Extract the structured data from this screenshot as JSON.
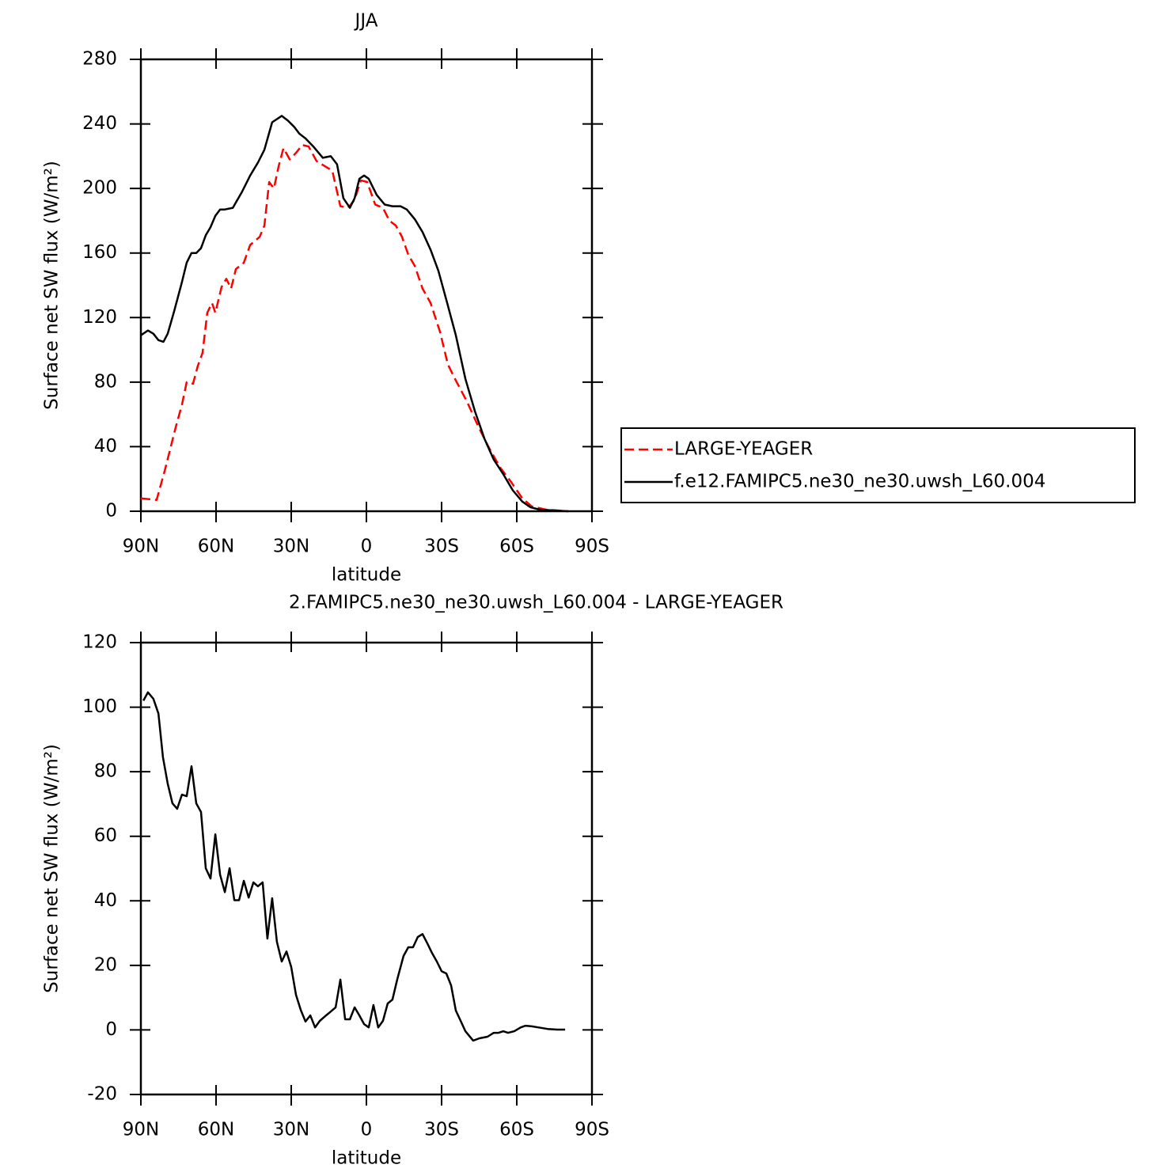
{
  "chart_data": [
    {
      "type": "line",
      "title": "JJA",
      "xlabel": "latitude",
      "ylabel": "Surface net SW flux (W/m²)",
      "xlim": [
        90,
        -90
      ],
      "xticks": [
        {
          "value": 90,
          "label": "90N"
        },
        {
          "value": 60,
          "label": "60N"
        },
        {
          "value": 30,
          "label": "30N"
        },
        0,
        {
          "value": -30,
          "label": "30S"
        },
        {
          "value": -60,
          "label": "60S"
        },
        {
          "value": -90,
          "label": "90S"
        }
      ],
      "ylim": [
        0,
        280
      ],
      "yticks": [
        0,
        40,
        80,
        120,
        160,
        200,
        240,
        280
      ],
      "legend": "outside-right",
      "series": [
        {
          "name": "LARGE-YEAGER",
          "color": "#ff0000",
          "linestyle": "dashed",
          "x": [
            90,
            83.7,
            80.5,
            76.1,
            73.6,
            71.7,
            69.2,
            67.3,
            65.4,
            63.5,
            61.6,
            60.3,
            57.8,
            55.9,
            54,
            52.1,
            48.9,
            46.4,
            42.6,
            40.7,
            38.8,
            36.9,
            35,
            33.1,
            30.6,
            28.1,
            25.6,
            23.1,
            19.9,
            16.8,
            13.6,
            10.4,
            7.3,
            4.7,
            2.2,
            -0.3,
            -3.5,
            -6.6,
            -9.2,
            -11.7,
            -14.2,
            -16.7,
            -19.3,
            -22.4,
            -25.6,
            -29.4,
            -32.5,
            -35.7,
            -40.1,
            -44.5,
            -49,
            -53.4,
            -57.8,
            -62.2,
            -66,
            -71.7,
            -80.5
          ],
          "values": [
            8,
            7,
            25,
            52,
            66,
            80,
            79,
            90,
            98,
            123,
            129,
            123,
            139,
            144,
            138,
            150,
            154,
            165,
            170,
            177,
            204,
            200,
            214,
            225,
            218,
            222,
            227,
            226,
            217,
            214,
            211,
            189,
            188,
            193,
            205,
            204,
            190,
            188,
            180,
            177,
            170,
            159,
            152,
            138,
            129,
            111,
            91,
            81,
            68,
            53,
            39,
            27,
            18,
            8,
            3,
            1,
            0
          ]
        },
        {
          "name": "f.e12.FAMIPC5.ne30_ne30.uwsh_L60.004",
          "color": "#000000",
          "linestyle": "solid",
          "x": [
            90,
            87.2,
            85,
            83,
            81,
            79.3,
            76.7,
            73.6,
            71.7,
            69.8,
            67.9,
            66,
            64.1,
            62.2,
            60.3,
            58.4,
            56.5,
            53.3,
            49.6,
            46.4,
            43.3,
            40.7,
            37.6,
            33.8,
            31.3,
            28.7,
            26.8,
            24.3,
            21.2,
            17.4,
            14.2,
            11.7,
            9.2,
            6.6,
            4.7,
            2.8,
            0.9,
            -0.9,
            -4.1,
            -7.3,
            -10.4,
            -13.6,
            -16.1,
            -19.3,
            -22.4,
            -25.6,
            -28.7,
            -31.9,
            -35.7,
            -39.5,
            -43.3,
            -47.1,
            -50.8,
            -54.6,
            -58.4,
            -62.2,
            -65.4,
            -69.2,
            -74.8,
            -80.5
          ],
          "values": [
            109,
            112,
            110,
            106,
            105,
            110,
            124,
            142,
            154,
            160,
            160,
            163,
            171,
            176,
            183,
            187,
            187,
            188,
            198,
            208,
            216,
            224,
            241,
            245,
            242,
            238,
            234,
            231,
            226,
            219,
            220,
            215,
            194,
            188,
            194,
            206,
            208,
            206,
            196,
            190,
            189,
            189,
            187,
            181,
            173,
            162,
            149,
            131,
            109,
            82,
            62,
            45,
            32,
            23,
            13,
            6,
            2.5,
            1,
            0.5,
            0
          ]
        }
      ]
    },
    {
      "type": "line",
      "title": "2.FAMIPC5.ne30_ne30.uwsh_L60.004 - LARGE-YEAGER",
      "xlabel": "latitude",
      "ylabel": "Surface net SW flux (W/m²)",
      "xlim": [
        90,
        -90
      ],
      "xticks": [
        {
          "value": 90,
          "label": "90N"
        },
        {
          "value": 60,
          "label": "60N"
        },
        {
          "value": 30,
          "label": "30N"
        },
        0,
        {
          "value": -30,
          "label": "30S"
        },
        {
          "value": -60,
          "label": "60S"
        },
        {
          "value": -90,
          "label": "90S"
        }
      ],
      "ylim": [
        -20,
        120
      ],
      "yticks": [
        -20,
        0,
        20,
        40,
        60,
        80,
        100,
        120
      ],
      "series": [
        {
          "color": "#000000",
          "linestyle": "solid",
          "x": [
            89,
            87.2,
            85,
            83,
            81.2,
            79.3,
            77.4,
            75.5,
            73.6,
            71.7,
            69.8,
            67.9,
            66,
            64.1,
            62.2,
            60.3,
            58.4,
            56.5,
            54.6,
            52.7,
            50.8,
            48.9,
            47,
            45.1,
            43.3,
            41.4,
            39.5,
            37.6,
            35.7,
            33.8,
            31.9,
            30,
            28.1,
            26.2,
            24.3,
            22.4,
            20.5,
            18.6,
            16.1,
            14.2,
            12.3,
            10.4,
            8.5,
            6.6,
            4.7,
            2.8,
            0.9,
            -0.9,
            -2.8,
            -4.7,
            -6.6,
            -8.5,
            -10.4,
            -12.3,
            -14.8,
            -16.7,
            -18.6,
            -20.5,
            -22.4,
            -24.3,
            -26.2,
            -28.1,
            -30,
            -31.9,
            -33.8,
            -35.7,
            -37.6,
            -39.5,
            -42.6,
            -45.1,
            -48.3,
            -50.8,
            -52.7,
            -54.6,
            -56.5,
            -59,
            -61.6,
            -63.5,
            -66,
            -68.5,
            -72.3,
            -76.1,
            -79.3
          ],
          "values": [
            102,
            104.6,
            102.6,
            98,
            84.5,
            76.3,
            70.2,
            68.5,
            72.9,
            72.4,
            81.7,
            70.2,
            67.5,
            50.1,
            46.9,
            60.6,
            48.1,
            42.7,
            50.1,
            40.2,
            40.2,
            46.2,
            41,
            45.7,
            44.5,
            45.7,
            28.3,
            40.8,
            27.3,
            21.2,
            24.3,
            19.5,
            10.9,
            6.2,
            2.6,
            4.5,
            0.8,
            2.8,
            4.5,
            5.7,
            7,
            15.6,
            3.3,
            3.3,
            7,
            4.5,
            1.8,
            0.8,
            7.7,
            0.8,
            2.8,
            8.2,
            9.4,
            15.6,
            22.9,
            25.6,
            25.6,
            28.8,
            29.7,
            26.8,
            23.8,
            21.2,
            18.2,
            17.5,
            13.8,
            6,
            2.8,
            -0.4,
            -3.3,
            -2.6,
            -2.1,
            -0.9,
            -0.9,
            -0.4,
            -0.9,
            -0.4,
            0.8,
            1.3,
            1.1,
            0.8,
            0.3,
            0.1,
            0.1
          ]
        }
      ]
    }
  ]
}
